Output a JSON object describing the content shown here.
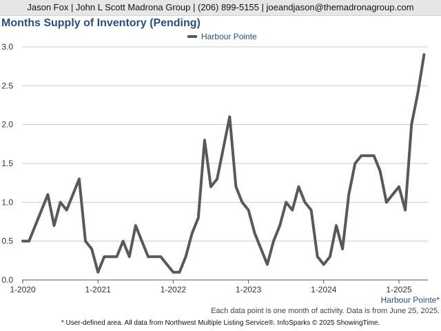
{
  "header": {
    "contact": "Jason Fox | John L Scott Madrona Group | (206) 899-5155 | joeandjason@themadronagroup.com"
  },
  "chart_data": {
    "type": "line",
    "title": "Months Supply of Inventory (Pending)",
    "xlabel": "",
    "ylabel": "",
    "ylim": [
      0,
      3.0
    ],
    "yticks": [
      "0.0",
      "0.5",
      "1.0",
      "1.5",
      "2.0",
      "2.5",
      "3.0"
    ],
    "xticks": [
      "1-2020",
      "1-2021",
      "1-2022",
      "1-2023",
      "1-2024",
      "1-2025"
    ],
    "grid": true,
    "legend": "top-center",
    "x": [
      "2020-01",
      "2020-02",
      "2020-03",
      "2020-04",
      "2020-05",
      "2020-06",
      "2020-07",
      "2020-08",
      "2020-09",
      "2020-10",
      "2020-11",
      "2020-12",
      "2021-01",
      "2021-02",
      "2021-03",
      "2021-04",
      "2021-05",
      "2021-06",
      "2021-07",
      "2021-08",
      "2021-09",
      "2021-10",
      "2021-11",
      "2021-12",
      "2022-01",
      "2022-02",
      "2022-03",
      "2022-04",
      "2022-05",
      "2022-06",
      "2022-07",
      "2022-08",
      "2022-09",
      "2022-10",
      "2022-11",
      "2022-12",
      "2023-01",
      "2023-02",
      "2023-03",
      "2023-04",
      "2023-05",
      "2023-06",
      "2023-07",
      "2023-08",
      "2023-09",
      "2023-10",
      "2023-11",
      "2023-12",
      "2024-01",
      "2024-02",
      "2024-03",
      "2024-04",
      "2024-05",
      "2024-06",
      "2024-07",
      "2024-08",
      "2024-09",
      "2024-10",
      "2024-11",
      "2024-12",
      "2025-01",
      "2025-02",
      "2025-03",
      "2025-04",
      "2025-05"
    ],
    "series": [
      {
        "name": "Harbour Pointe",
        "color": "#555b5a",
        "values": [
          0.5,
          0.5,
          0.7,
          0.9,
          1.1,
          0.7,
          1.0,
          0.9,
          1.1,
          1.3,
          0.5,
          0.4,
          0.1,
          0.3,
          0.3,
          0.3,
          0.5,
          0.3,
          0.7,
          0.5,
          0.3,
          0.3,
          0.3,
          0.2,
          0.1,
          0.1,
          0.3,
          0.6,
          0.8,
          1.8,
          1.2,
          1.3,
          1.7,
          2.1,
          1.2,
          1.0,
          0.9,
          0.6,
          0.4,
          0.2,
          0.5,
          0.7,
          1.0,
          0.9,
          1.2,
          1.0,
          0.9,
          0.3,
          0.2,
          0.3,
          0.7,
          0.4,
          1.1,
          1.5,
          1.6,
          1.6,
          1.6,
          1.4,
          1.0,
          1.1,
          1.2,
          0.9,
          2.0,
          2.4,
          2.9
        ]
      }
    ]
  },
  "area_label": "Harbour Pointe*",
  "note": "Each data point is one month of activity. Data is from June 25, 2025.",
  "footer": "* User-defined area. All data from Northwest Multiple Listing Service®. InfoSparks © 2025 ShowingTime."
}
